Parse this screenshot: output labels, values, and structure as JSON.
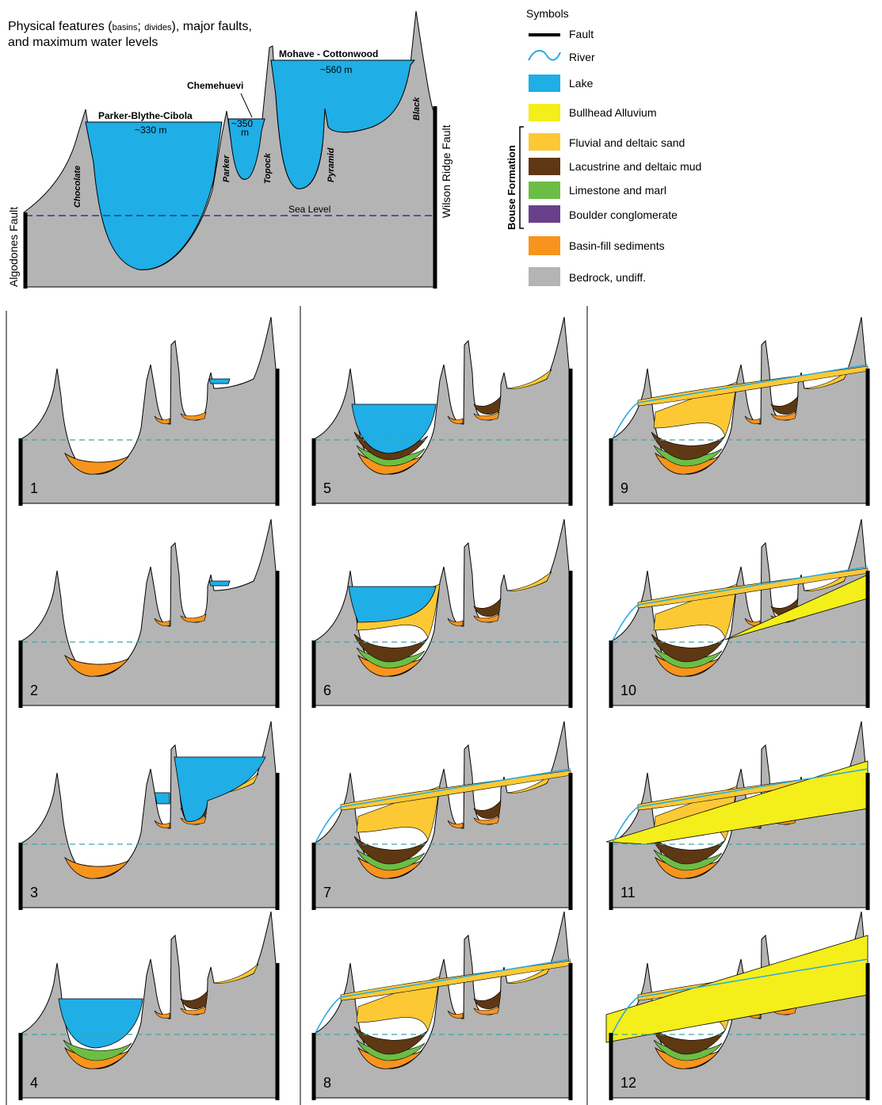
{
  "overview": {
    "title_line1": "Physical features (",
    "title_basins": "basins",
    "title_sep": "; ",
    "title_divides": "divides",
    "title_line1_end": "), major faults,",
    "title_line2": "and maximum water levels",
    "basins": [
      {
        "name": "Parker-Blythe-Cibola",
        "level": "~330 m"
      },
      {
        "name": "Chemehuevi",
        "level_line1": "~350",
        "level_line2": "m"
      },
      {
        "name": "Mohave - Cottonwood",
        "level": "~560 m"
      }
    ],
    "divides": [
      "Chocolate",
      "Parker",
      "Topock",
      "Pyramid",
      "Black"
    ],
    "sea_level_label": "Sea Level",
    "left_fault_label": "Algodones Fault",
    "right_fault_label": "Wilson Ridge Fault"
  },
  "legend": {
    "title": "Symbols",
    "group_label": "Bouse Formation",
    "items": [
      {
        "key": "fault",
        "label": "Fault",
        "color": "#000000"
      },
      {
        "key": "river",
        "label": "River",
        "color": "#29aae1"
      },
      {
        "key": "lake",
        "label": "Lake",
        "color": "#1faee6"
      },
      {
        "key": "bullhead",
        "label": "Bullhead Alluvium",
        "color": "#f4ee1a"
      },
      {
        "key": "fluvial",
        "label": "Fluvial and deltaic sand",
        "color": "#fcc935"
      },
      {
        "key": "mud",
        "label": "Lacustrine and deltaic mud",
        "color": "#5e3813"
      },
      {
        "key": "limestone",
        "label": "Limestone and marl",
        "color": "#6cbd45"
      },
      {
        "key": "boulder",
        "label": "Boulder conglomerate",
        "color": "#6a3f8c"
      },
      {
        "key": "basinfill",
        "label": "Basin-fill sediments",
        "color": "#f7941d"
      },
      {
        "key": "bedrock",
        "label": "Bedrock, undiff.",
        "color": "#b4b4b4"
      }
    ]
  },
  "panels": [
    {
      "num": "1",
      "lake": "mc_small",
      "fill": 0,
      "bullhead": 0
    },
    {
      "num": "2",
      "lake": "mc_small",
      "fill": 0,
      "bullhead": 0
    },
    {
      "num": "3",
      "lake": "mc_full",
      "fill": 1,
      "bullhead": 0
    },
    {
      "num": "4",
      "lake": "pbc_mid",
      "fill": 2,
      "bullhead": 0
    },
    {
      "num": "5",
      "lake": "pbc_mid",
      "fill": 3,
      "bullhead": 0
    },
    {
      "num": "6",
      "lake": "pbc_high",
      "fill": 4,
      "bullhead": 0
    },
    {
      "num": "7",
      "lake": "none",
      "fill": 5,
      "bullhead": 0
    },
    {
      "num": "8",
      "lake": "none",
      "fill": 5,
      "bullhead": 0
    },
    {
      "num": "9",
      "lake": "none",
      "fill": 6,
      "bullhead": 0
    },
    {
      "num": "10",
      "lake": "none",
      "fill": 6,
      "bullhead": 1
    },
    {
      "num": "11",
      "lake": "none",
      "fill": 6,
      "bullhead": 2
    },
    {
      "num": "12",
      "lake": "none",
      "fill": 6,
      "bullhead": 3
    }
  ],
  "colors": {
    "bedrock": "#b4b4b4",
    "lake": "#1faee6",
    "sea_level_dash": "#2b3a8c",
    "panel_sea_dash": "#3aa6a6"
  }
}
